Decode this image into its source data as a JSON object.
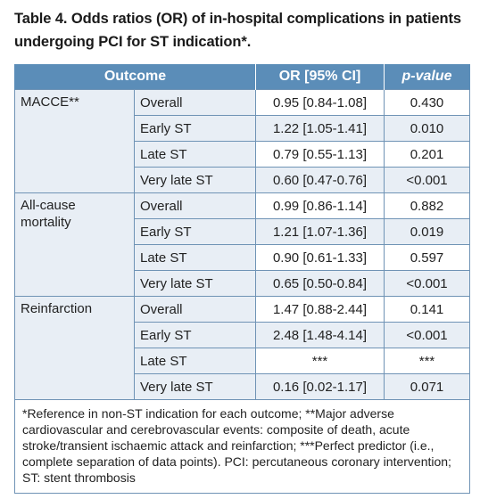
{
  "title": "Table 4. Odds ratios (OR) of in-hospital complications in patients undergoing PCI for ST indication*.",
  "headers": {
    "outcome": "Outcome",
    "or": "OR [95% CI]",
    "pvalue": "p-value"
  },
  "groups": [
    {
      "name": "MACCE**",
      "rows": [
        {
          "sub": "Overall",
          "or": "0.95 [0.84-1.08]",
          "p": "0.430"
        },
        {
          "sub": "Early ST",
          "or": "1.22 [1.05-1.41]",
          "p": "0.010"
        },
        {
          "sub": "Late ST",
          "or": "0.79 [0.55-1.13]",
          "p": "0.201"
        },
        {
          "sub": "Very late ST",
          "or": "0.60 [0.47-0.76]",
          "p": "<0.001"
        }
      ]
    },
    {
      "name": "All-cause mortality",
      "rows": [
        {
          "sub": "Overall",
          "or": "0.99 [0.86-1.14]",
          "p": "0.882"
        },
        {
          "sub": "Early ST",
          "or": "1.21 [1.07-1.36]",
          "p": "0.019"
        },
        {
          "sub": "Late ST",
          "or": "0.90 [0.61-1.33]",
          "p": "0.597"
        },
        {
          "sub": "Very late ST",
          "or": "0.65 [0.50-0.84]",
          "p": "<0.001"
        }
      ]
    },
    {
      "name": "Reinfarction",
      "rows": [
        {
          "sub": "Overall",
          "or": "1.47 [0.88-2.44]",
          "p": "0.141"
        },
        {
          "sub": "Early ST",
          "or": "2.48 [1.48-4.14]",
          "p": "<0.001"
        },
        {
          "sub": "Late ST",
          "or": "***",
          "p": "***"
        },
        {
          "sub": "Very late ST",
          "or": "0.16 [0.02-1.17]",
          "p": "0.071"
        }
      ]
    }
  ],
  "footnote": "*Reference in non-ST indication for each outcome; **Major adverse cardiovascular and cerebrovascular events: composite of death, acute stroke/transient ischaemic attack and reinfarction; ***Perfect predictor (i.e., complete separation of data points). PCI: percutaneous coronary intervention; ST: stent thrombosis",
  "colors": {
    "header_bg": "#5b8db8",
    "shaded_cell": "#e8eef5",
    "border": "#6f93b5"
  }
}
